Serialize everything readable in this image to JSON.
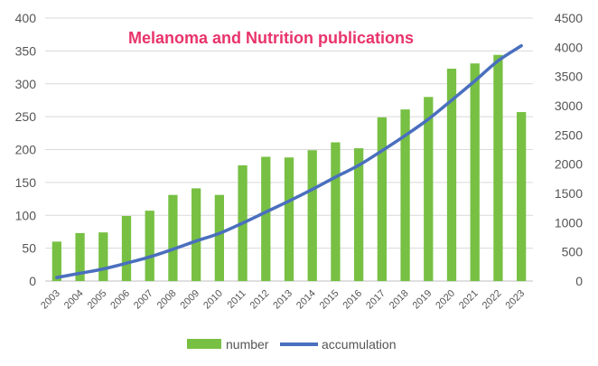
{
  "chart_data": {
    "type": "bar+line",
    "title": "Melanoma and Nutrition publications",
    "categories": [
      "2003",
      "2004",
      "2005",
      "2006",
      "2007",
      "2008",
      "2009",
      "2010",
      "2011",
      "2012",
      "2013",
      "2014",
      "2015",
      "2016",
      "2017",
      "2018",
      "2019",
      "2020",
      "2021",
      "2022",
      "2023"
    ],
    "series": [
      {
        "name": "number",
        "type": "bar",
        "axis": "left",
        "values": [
          60,
          73,
          74,
          99,
          107,
          131,
          141,
          131,
          176,
          189,
          188,
          199,
          211,
          202,
          249,
          261,
          280,
          323,
          331,
          344,
          257
        ]
      },
      {
        "name": "accumulation",
        "type": "line",
        "axis": "right",
        "values": [
          60,
          133,
          207,
          306,
          413,
          544,
          685,
          816,
          992,
          1181,
          1369,
          1568,
          1779,
          1981,
          2230,
          2491,
          2771,
          3094,
          3425,
          3769,
          4026
        ]
      }
    ],
    "y_left": {
      "ticks": [
        0,
        50,
        100,
        150,
        200,
        250,
        300,
        350,
        400
      ],
      "ylim": [
        0,
        400
      ]
    },
    "y_right": {
      "ticks": [
        0,
        500,
        1000,
        1500,
        2000,
        2500,
        3000,
        3500,
        4000,
        4500
      ],
      "ylim": [
        0,
        4500
      ]
    },
    "grid": true,
    "legend": {
      "placement": "bottom-center",
      "labels": [
        "number",
        "accumulation"
      ]
    },
    "colors": {
      "bar": "#77c043",
      "line": "#4a6fbe",
      "title": "#e8336b",
      "grid": "#d9d9d9"
    }
  }
}
